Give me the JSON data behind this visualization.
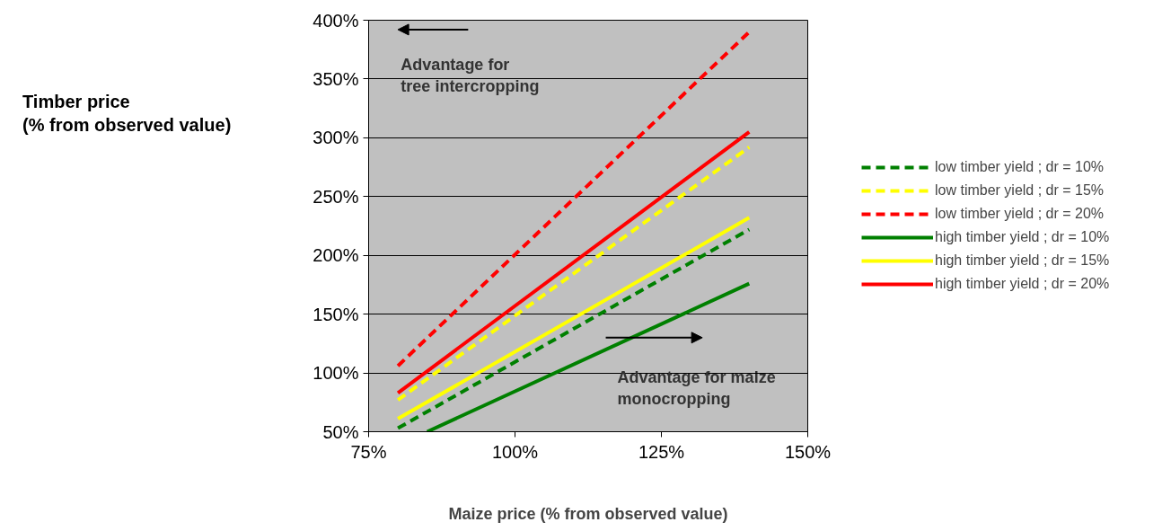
{
  "chart_data": {
    "type": "line",
    "xlabel": "Maize price (% from observed value)",
    "ylabel": "Timber price\n(% from observed value)",
    "x": [
      80,
      140
    ],
    "xlim": [
      75,
      150
    ],
    "ylim": [
      50,
      400
    ],
    "xticks": [
      {
        "value": 75,
        "label": "75%"
      },
      {
        "value": 100,
        "label": "100%"
      },
      {
        "value": 125,
        "label": "125%"
      },
      {
        "value": 150,
        "label": "150%"
      }
    ],
    "yticks": [
      {
        "value": 50,
        "label": "50%"
      },
      {
        "value": 100,
        "label": "100%"
      },
      {
        "value": 150,
        "label": "150%"
      },
      {
        "value": 200,
        "label": "200%"
      },
      {
        "value": 250,
        "label": "250%"
      },
      {
        "value": 300,
        "label": "300%"
      },
      {
        "value": 350,
        "label": "350%"
      },
      {
        "value": 400,
        "label": "400%"
      }
    ],
    "grid": "y",
    "legend": "right",
    "marker": "none",
    "series": [
      {
        "name": "low timber yield ; dr = 10%",
        "color": "#008000",
        "line_style": "dashed",
        "values": [
          53,
          222
        ]
      },
      {
        "name": "low timber yield ; dr = 15%",
        "color": "#ffff00",
        "line_style": "dashed",
        "values": [
          77,
          292
        ]
      },
      {
        "name": "low timber yield ; dr = 20%",
        "color": "#ff0000",
        "line_style": "dashed",
        "values": [
          106,
          390
        ]
      },
      {
        "name": "high timber yield ; dr = 10%",
        "color": "#008000",
        "line_style": "solid",
        "x": [
          85,
          140
        ],
        "values": [
          50,
          176
        ]
      },
      {
        "name": "high timber yield ; dr = 15%",
        "color": "#ffff00",
        "line_style": "solid",
        "values": [
          61,
          232
        ]
      },
      {
        "name": "high timber yield ; dr = 20%",
        "color": "#ff0000",
        "line_style": "solid",
        "values": [
          83,
          305
        ]
      }
    ],
    "annotations": [
      "Advantage for\ntree intercropping",
      "Advantage for maize\nmonocropping"
    ]
  }
}
